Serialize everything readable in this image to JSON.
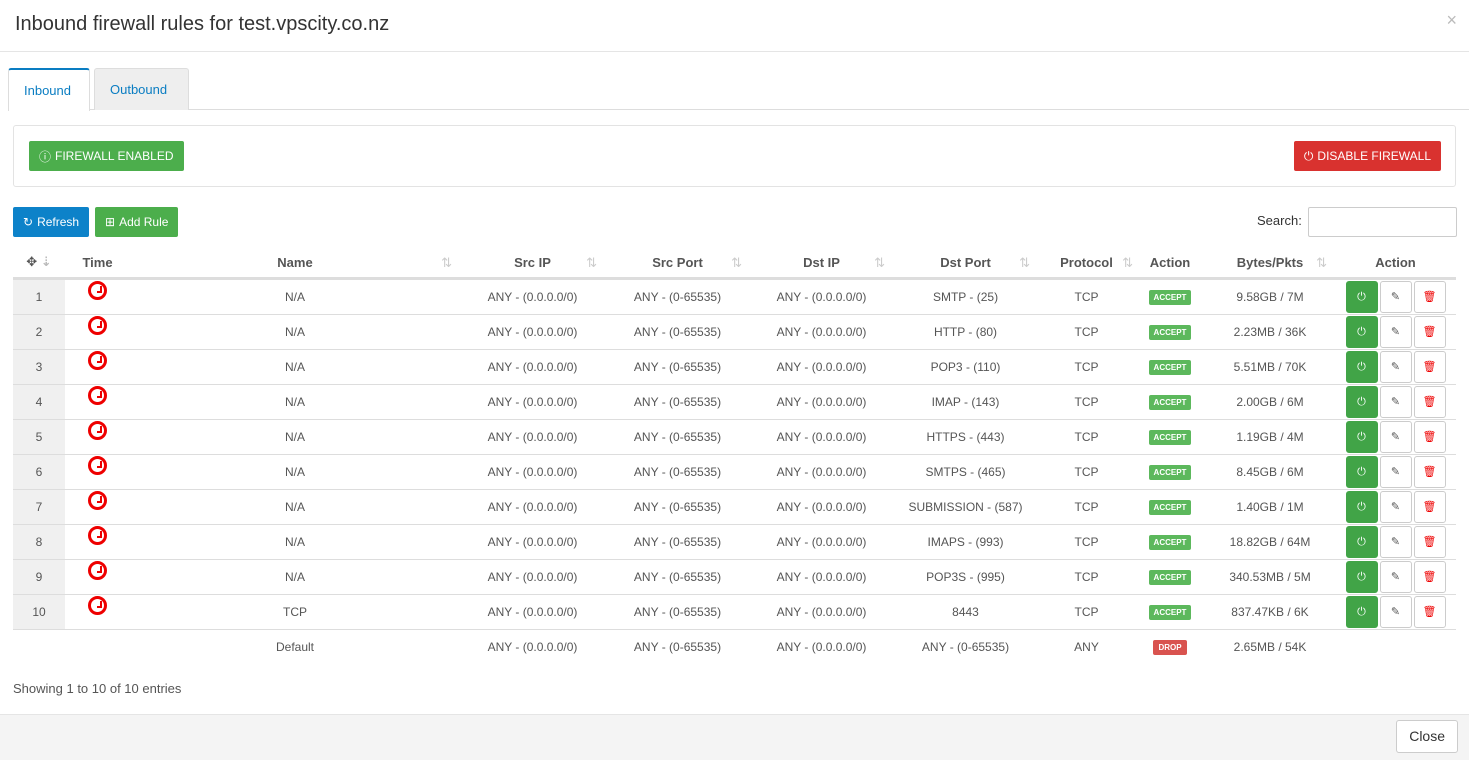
{
  "title": "Inbound firewall rules for test.vpscity.co.nz",
  "close_x": "×",
  "tabs": [
    {
      "label": "Inbound"
    },
    {
      "label": "Outbound"
    }
  ],
  "status_label": "FIREWALL ENABLED",
  "disable_label": "DISABLE FIREWALL",
  "refresh_label": "Refresh",
  "add_rule_label": "Add Rule",
  "search_label": "Search:",
  "search_value": "",
  "columns": [
    "Time",
    "Name",
    "Src IP",
    "Src Port",
    "Dst IP",
    "Dst Port",
    "Protocol",
    "Action",
    "Bytes/Pkts",
    "Action"
  ],
  "colors": {
    "accept": "#5cb85c",
    "drop": "#d9534f",
    "clock": "#e00000"
  },
  "rows": [
    {
      "num": "1",
      "name": "N/A",
      "src_ip": "ANY - (0.0.0.0/0)",
      "src_port": "ANY - (0-65535)",
      "dst_ip": "ANY - (0.0.0.0/0)",
      "dst_port": "SMTP - (25)",
      "protocol": "TCP",
      "action": "ACCEPT",
      "bytes": "9.58GB / 7M"
    },
    {
      "num": "2",
      "name": "N/A",
      "src_ip": "ANY - (0.0.0.0/0)",
      "src_port": "ANY - (0-65535)",
      "dst_ip": "ANY - (0.0.0.0/0)",
      "dst_port": "HTTP - (80)",
      "protocol": "TCP",
      "action": "ACCEPT",
      "bytes": "2.23MB / 36K"
    },
    {
      "num": "3",
      "name": "N/A",
      "src_ip": "ANY - (0.0.0.0/0)",
      "src_port": "ANY - (0-65535)",
      "dst_ip": "ANY - (0.0.0.0/0)",
      "dst_port": "POP3 - (110)",
      "protocol": "TCP",
      "action": "ACCEPT",
      "bytes": "5.51MB / 70K"
    },
    {
      "num": "4",
      "name": "N/A",
      "src_ip": "ANY - (0.0.0.0/0)",
      "src_port": "ANY - (0-65535)",
      "dst_ip": "ANY - (0.0.0.0/0)",
      "dst_port": "IMAP - (143)",
      "protocol": "TCP",
      "action": "ACCEPT",
      "bytes": "2.00GB / 6M"
    },
    {
      "num": "5",
      "name": "N/A",
      "src_ip": "ANY - (0.0.0.0/0)",
      "src_port": "ANY - (0-65535)",
      "dst_ip": "ANY - (0.0.0.0/0)",
      "dst_port": "HTTPS - (443)",
      "protocol": "TCP",
      "action": "ACCEPT",
      "bytes": "1.19GB / 4M"
    },
    {
      "num": "6",
      "name": "N/A",
      "src_ip": "ANY - (0.0.0.0/0)",
      "src_port": "ANY - (0-65535)",
      "dst_ip": "ANY - (0.0.0.0/0)",
      "dst_port": "SMTPS - (465)",
      "protocol": "TCP",
      "action": "ACCEPT",
      "bytes": "8.45GB / 6M"
    },
    {
      "num": "7",
      "name": "N/A",
      "src_ip": "ANY - (0.0.0.0/0)",
      "src_port": "ANY - (0-65535)",
      "dst_ip": "ANY - (0.0.0.0/0)",
      "dst_port": "SUBMISSION - (587)",
      "protocol": "TCP",
      "action": "ACCEPT",
      "bytes": "1.40GB / 1M"
    },
    {
      "num": "8",
      "name": "N/A",
      "src_ip": "ANY - (0.0.0.0/0)",
      "src_port": "ANY - (0-65535)",
      "dst_ip": "ANY - (0.0.0.0/0)",
      "dst_port": "IMAPS - (993)",
      "protocol": "TCP",
      "action": "ACCEPT",
      "bytes": "18.82GB / 64M"
    },
    {
      "num": "9",
      "name": "N/A",
      "src_ip": "ANY - (0.0.0.0/0)",
      "src_port": "ANY - (0-65535)",
      "dst_ip": "ANY - (0.0.0.0/0)",
      "dst_port": "POP3S - (995)",
      "protocol": "TCP",
      "action": "ACCEPT",
      "bytes": "340.53MB / 5M"
    },
    {
      "num": "10",
      "name": "TCP",
      "src_ip": "ANY - (0.0.0.0/0)",
      "src_port": "ANY - (0-65535)",
      "dst_ip": "ANY - (0.0.0.0/0)",
      "dst_port": "8443",
      "protocol": "TCP",
      "action": "ACCEPT",
      "bytes": "837.47KB / 6K"
    }
  ],
  "default_row": {
    "name": "Default",
    "src_ip": "ANY - (0.0.0.0/0)",
    "src_port": "ANY - (0-65535)",
    "dst_ip": "ANY - (0.0.0.0/0)",
    "dst_port": "ANY - (0-65535)",
    "protocol": "ANY",
    "action": "DROP",
    "bytes": "2.65MB / 54K"
  },
  "info": "Showing 1 to 10 of 10 entries",
  "close_label": "Close"
}
